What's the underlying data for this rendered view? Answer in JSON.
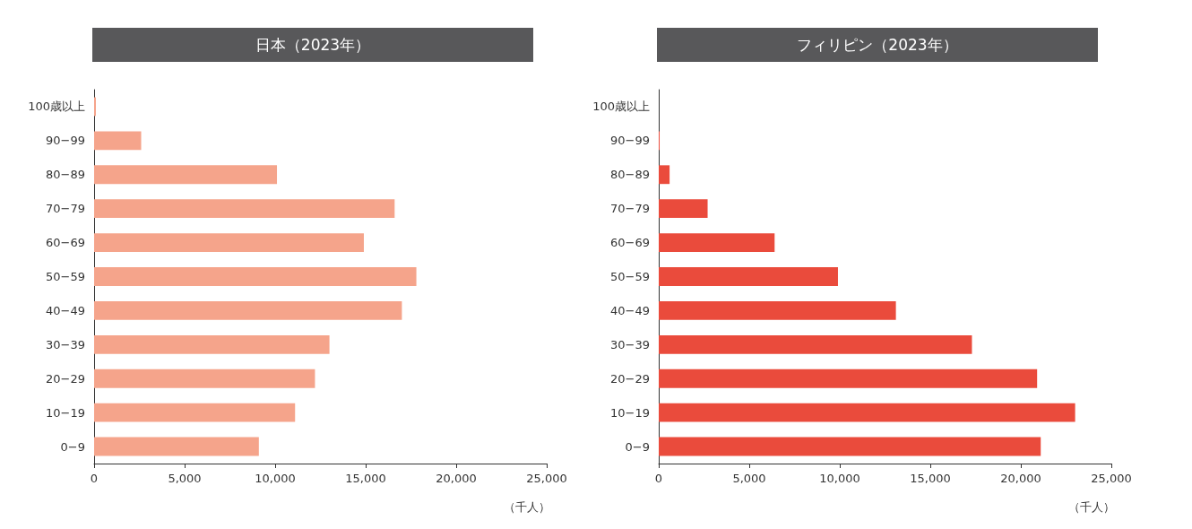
{
  "chart_data": [
    {
      "type": "bar",
      "orientation": "horizontal",
      "title": "日本（2023年）",
      "xlabel": "（千人）",
      "categories": [
        "100歳以上",
        "90−99",
        "80−89",
        "70−79",
        "60−69",
        "50−59",
        "40−49",
        "30−39",
        "20−29",
        "10−19",
        "0−9"
      ],
      "values": [
        100,
        2600,
        10100,
        16600,
        14900,
        17800,
        17000,
        13000,
        12200,
        11100,
        9100
      ],
      "color": "#f5a48b",
      "xlim": [
        0,
        25000
      ],
      "xticks": [
        0,
        {
          "value": 5000,
          "label": "5,000"
        },
        {
          "value": 10000,
          "label": "10,000"
        },
        {
          "value": 15000,
          "label": "15,000"
        },
        {
          "value": 20000,
          "label": "20,000"
        },
        {
          "value": 25000,
          "label": "25,000"
        }
      ],
      "grid": false
    },
    {
      "type": "bar",
      "orientation": "horizontal",
      "title": "フィリピン（2023年）",
      "xlabel": "（千人）",
      "categories": [
        "100歳以上",
        "90−99",
        "80−89",
        "70−79",
        "60−69",
        "50−59",
        "40−49",
        "30−39",
        "20−29",
        "10−19",
        "0−9"
      ],
      "values": [
        0,
        50,
        600,
        2700,
        6400,
        9900,
        13100,
        17300,
        20900,
        23000,
        21100
      ],
      "color": "#ea4b3c",
      "xlim": [
        0,
        25000
      ],
      "xticks": [
        0,
        {
          "value": 5000,
          "label": "5,000"
        },
        {
          "value": 10000,
          "label": "10,000"
        },
        {
          "value": 15000,
          "label": "15,000"
        },
        {
          "value": 20000,
          "label": "20,000"
        },
        {
          "value": 25000,
          "label": "25,000"
        }
      ],
      "grid": false
    }
  ]
}
